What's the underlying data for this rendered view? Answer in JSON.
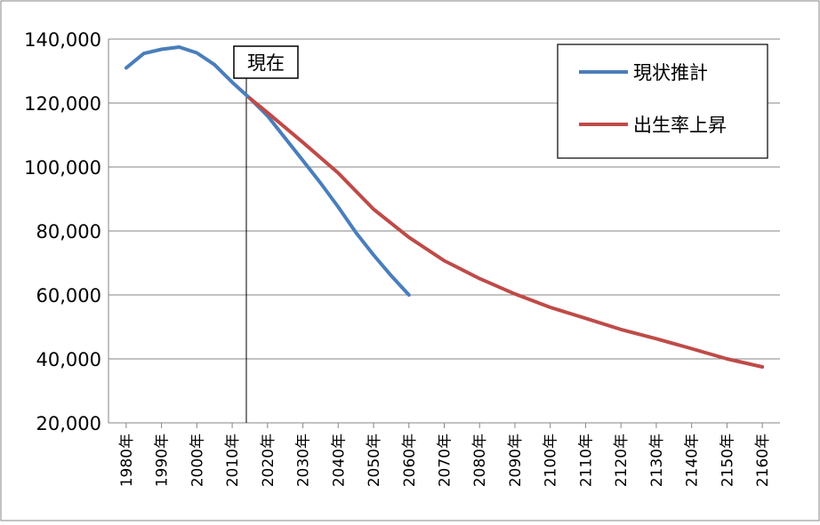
{
  "chart_data": {
    "type": "line",
    "title": "",
    "xlabel": "",
    "ylabel": "",
    "ylim": [
      20000,
      140000
    ],
    "xlim": [
      1980,
      2160
    ],
    "y_ticks": [
      "20,000",
      "40,000",
      "60,000",
      "80,000",
      "100,000",
      "120,000",
      "140,000"
    ],
    "x_ticks": [
      "1980年",
      "1990年",
      "2000年",
      "2010年",
      "2020年",
      "2030年",
      "2040年",
      "2050年",
      "2060年",
      "2070年",
      "2080年",
      "2090年",
      "2100年",
      "2110年",
      "2120年",
      "2130年",
      "2140年",
      "2150年",
      "2160年"
    ],
    "grid": "horizontal",
    "legend_position": "top-right",
    "annotation": {
      "label": "現在",
      "x": 2014
    },
    "series": [
      {
        "name": "現状推計",
        "color": "#4a7ebb",
        "x": [
          1980,
          1985,
          1990,
          1995,
          2000,
          2005,
          2010,
          2015,
          2020,
          2025,
          2030,
          2035,
          2040,
          2045,
          2050,
          2055,
          2060
        ],
        "values": [
          131000,
          135500,
          136800,
          137500,
          135700,
          132000,
          126500,
          121500,
          116000,
          109000,
          102000,
          95000,
          87500,
          79500,
          72500,
          66000,
          60000
        ]
      },
      {
        "name": "出生率上昇",
        "color": "#be4b48",
        "x": [
          2015,
          2020,
          2030,
          2040,
          2050,
          2060,
          2070,
          2080,
          2090,
          2100,
          2110,
          2120,
          2130,
          2140,
          2150,
          2160
        ],
        "values": [
          121500,
          117000,
          107700,
          98100,
          86800,
          78000,
          70700,
          65100,
          60300,
          56100,
          52700,
          49200,
          46300,
          43200,
          40000,
          37500
        ]
      }
    ]
  }
}
